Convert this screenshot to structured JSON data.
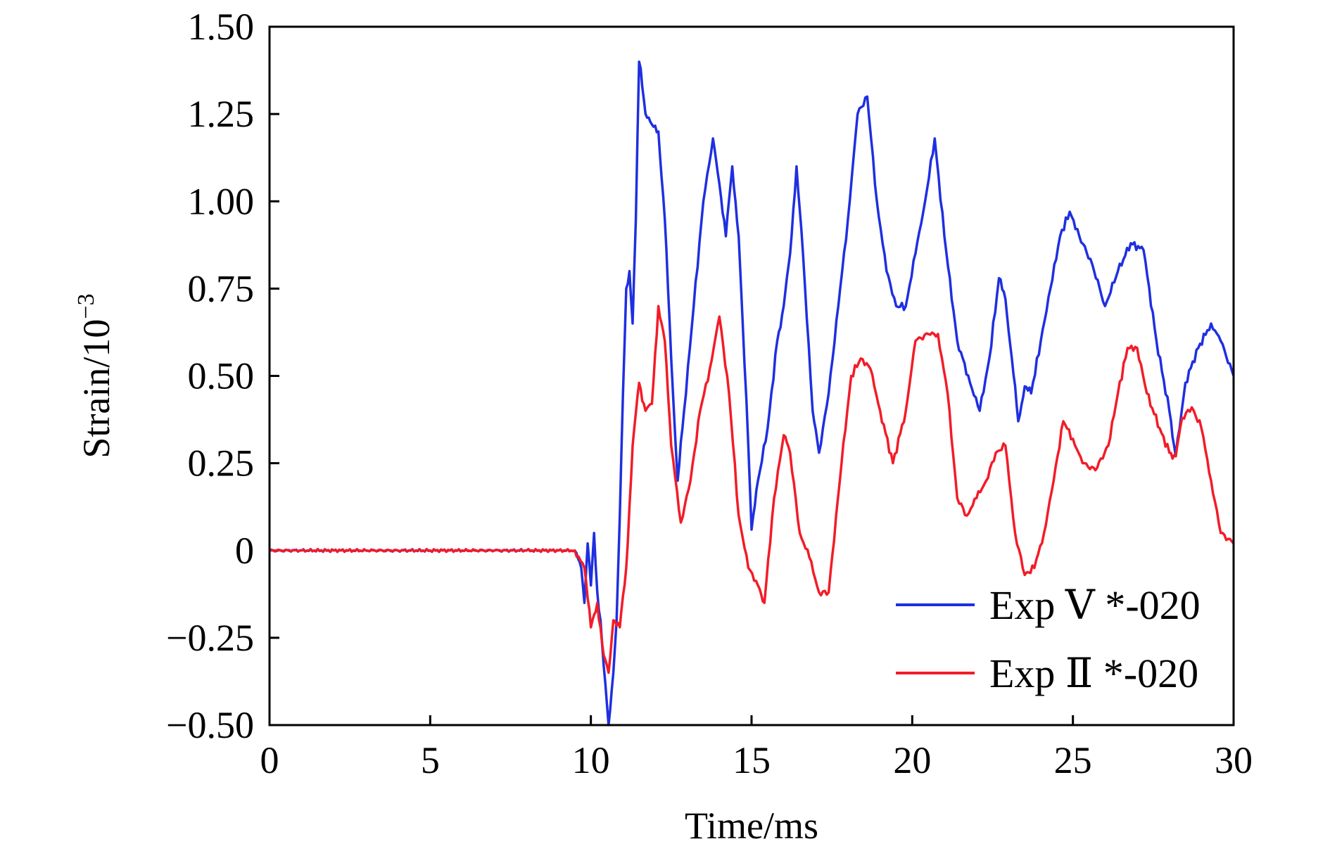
{
  "chart_data": {
    "type": "line",
    "title": "",
    "xlabel": "Time/ms",
    "ylabel_base": "Strain/10",
    "ylabel_exponent": "−3",
    "xlim": [
      0,
      30
    ],
    "ylim": [
      -0.5,
      1.5
    ],
    "x_ticks": [
      0,
      5,
      10,
      15,
      20,
      25,
      30
    ],
    "x_tick_labels": [
      "0",
      "5",
      "10",
      "15",
      "20",
      "25",
      "30"
    ],
    "y_ticks": [
      -0.5,
      -0.25,
      0,
      0.25,
      0.5,
      0.75,
      1.0,
      1.25,
      1.5
    ],
    "y_tick_labels": [
      "−0.50",
      "−0.25",
      "0",
      "0.25",
      "0.50",
      "0.75",
      "1.00",
      "1.25",
      "1.50"
    ],
    "grid": false,
    "legend_position": "bottom-right",
    "series": [
      {
        "name": "Exp Ⅴ *-020",
        "color": "#1f2fe0",
        "x": [
          0,
          1,
          2,
          3,
          4,
          5,
          6,
          7,
          8,
          9,
          9.5,
          9.7,
          9.8,
          9.9,
          10.0,
          10.1,
          10.2,
          10.3,
          10.4,
          10.55,
          10.7,
          10.8,
          10.9,
          11.0,
          11.1,
          11.2,
          11.3,
          11.4,
          11.5,
          11.55,
          11.7,
          11.9,
          12.1,
          12.3,
          12.5,
          12.7,
          12.9,
          13.2,
          13.5,
          13.8,
          14.0,
          14.2,
          14.4,
          14.6,
          14.9,
          15.0,
          15.2,
          15.5,
          15.8,
          16.0,
          16.2,
          16.4,
          16.6,
          16.9,
          17.1,
          17.4,
          17.7,
          18.0,
          18.3,
          18.6,
          18.9,
          19.2,
          19.5,
          19.8,
          20.1,
          20.4,
          20.7,
          21.0,
          21.4,
          21.8,
          22.1,
          22.4,
          22.7,
          22.9,
          23.1,
          23.3,
          23.5,
          23.7,
          24.0,
          24.3,
          24.6,
          24.9,
          25.2,
          25.6,
          26.0,
          26.4,
          26.8,
          27.2,
          27.6,
          28.0,
          28.2,
          28.5,
          28.9,
          29.3,
          29.6,
          30.0
        ],
        "values": [
          0,
          0,
          0,
          0,
          0,
          0,
          0,
          0,
          0,
          0,
          0,
          -0.05,
          -0.15,
          0.02,
          -0.1,
          0.05,
          -0.12,
          -0.2,
          -0.33,
          -0.5,
          -0.35,
          -0.2,
          0.1,
          0.45,
          0.75,
          0.8,
          0.65,
          0.95,
          1.4,
          1.38,
          1.25,
          1.22,
          1.2,
          0.95,
          0.55,
          0.2,
          0.4,
          0.7,
          1.0,
          1.18,
          1.05,
          0.9,
          1.1,
          0.9,
          0.3,
          0.06,
          0.2,
          0.35,
          0.6,
          0.7,
          0.85,
          1.1,
          0.85,
          0.4,
          0.28,
          0.45,
          0.7,
          0.95,
          1.25,
          1.3,
          1.0,
          0.8,
          0.7,
          0.7,
          0.85,
          1.0,
          1.18,
          0.9,
          0.6,
          0.48,
          0.4,
          0.55,
          0.78,
          0.72,
          0.55,
          0.37,
          0.47,
          0.45,
          0.6,
          0.75,
          0.9,
          0.97,
          0.9,
          0.82,
          0.7,
          0.8,
          0.88,
          0.86,
          0.6,
          0.4,
          0.27,
          0.48,
          0.58,
          0.65,
          0.6,
          0.5
        ]
      },
      {
        "name": "Exp Ⅱ *-020",
        "color": "#f21c28",
        "x": [
          0,
          1,
          2,
          3,
          4,
          5,
          6,
          7,
          8,
          9,
          9.5,
          9.8,
          10.0,
          10.2,
          10.4,
          10.55,
          10.7,
          10.9,
          11.1,
          11.3,
          11.5,
          11.7,
          11.9,
          12.1,
          12.3,
          12.5,
          12.8,
          13.1,
          13.4,
          13.7,
          14.0,
          14.3,
          14.6,
          14.9,
          15.2,
          15.4,
          15.7,
          16.0,
          16.2,
          16.5,
          16.8,
          17.1,
          17.4,
          17.8,
          18.1,
          18.4,
          18.7,
          19.0,
          19.4,
          19.8,
          20.1,
          20.5,
          20.8,
          21.1,
          21.4,
          21.7,
          22.0,
          22.3,
          22.6,
          22.9,
          23.2,
          23.5,
          23.8,
          24.1,
          24.4,
          24.7,
          25.0,
          25.3,
          25.7,
          26.1,
          26.4,
          26.7,
          27.0,
          27.3,
          27.7,
          28.0,
          28.2,
          28.4,
          28.7,
          29.0,
          29.3,
          29.6,
          30.0
        ],
        "values": [
          0,
          0,
          0,
          0,
          0,
          0,
          0,
          0,
          0,
          0,
          0,
          -0.05,
          -0.22,
          -0.15,
          -0.3,
          -0.35,
          -0.2,
          -0.22,
          -0.05,
          0.3,
          0.48,
          0.4,
          0.42,
          0.7,
          0.6,
          0.3,
          0.08,
          0.2,
          0.4,
          0.52,
          0.67,
          0.45,
          0.1,
          -0.05,
          -0.1,
          -0.15,
          0.15,
          0.33,
          0.28,
          0.05,
          -0.02,
          -0.12,
          -0.12,
          0.25,
          0.5,
          0.55,
          0.52,
          0.4,
          0.25,
          0.4,
          0.6,
          0.62,
          0.62,
          0.45,
          0.15,
          0.1,
          0.15,
          0.2,
          0.28,
          0.3,
          0.05,
          -0.07,
          -0.05,
          0.05,
          0.2,
          0.37,
          0.32,
          0.25,
          0.23,
          0.3,
          0.45,
          0.58,
          0.58,
          0.45,
          0.35,
          0.28,
          0.27,
          0.38,
          0.41,
          0.35,
          0.2,
          0.05,
          0.02
        ]
      }
    ]
  }
}
